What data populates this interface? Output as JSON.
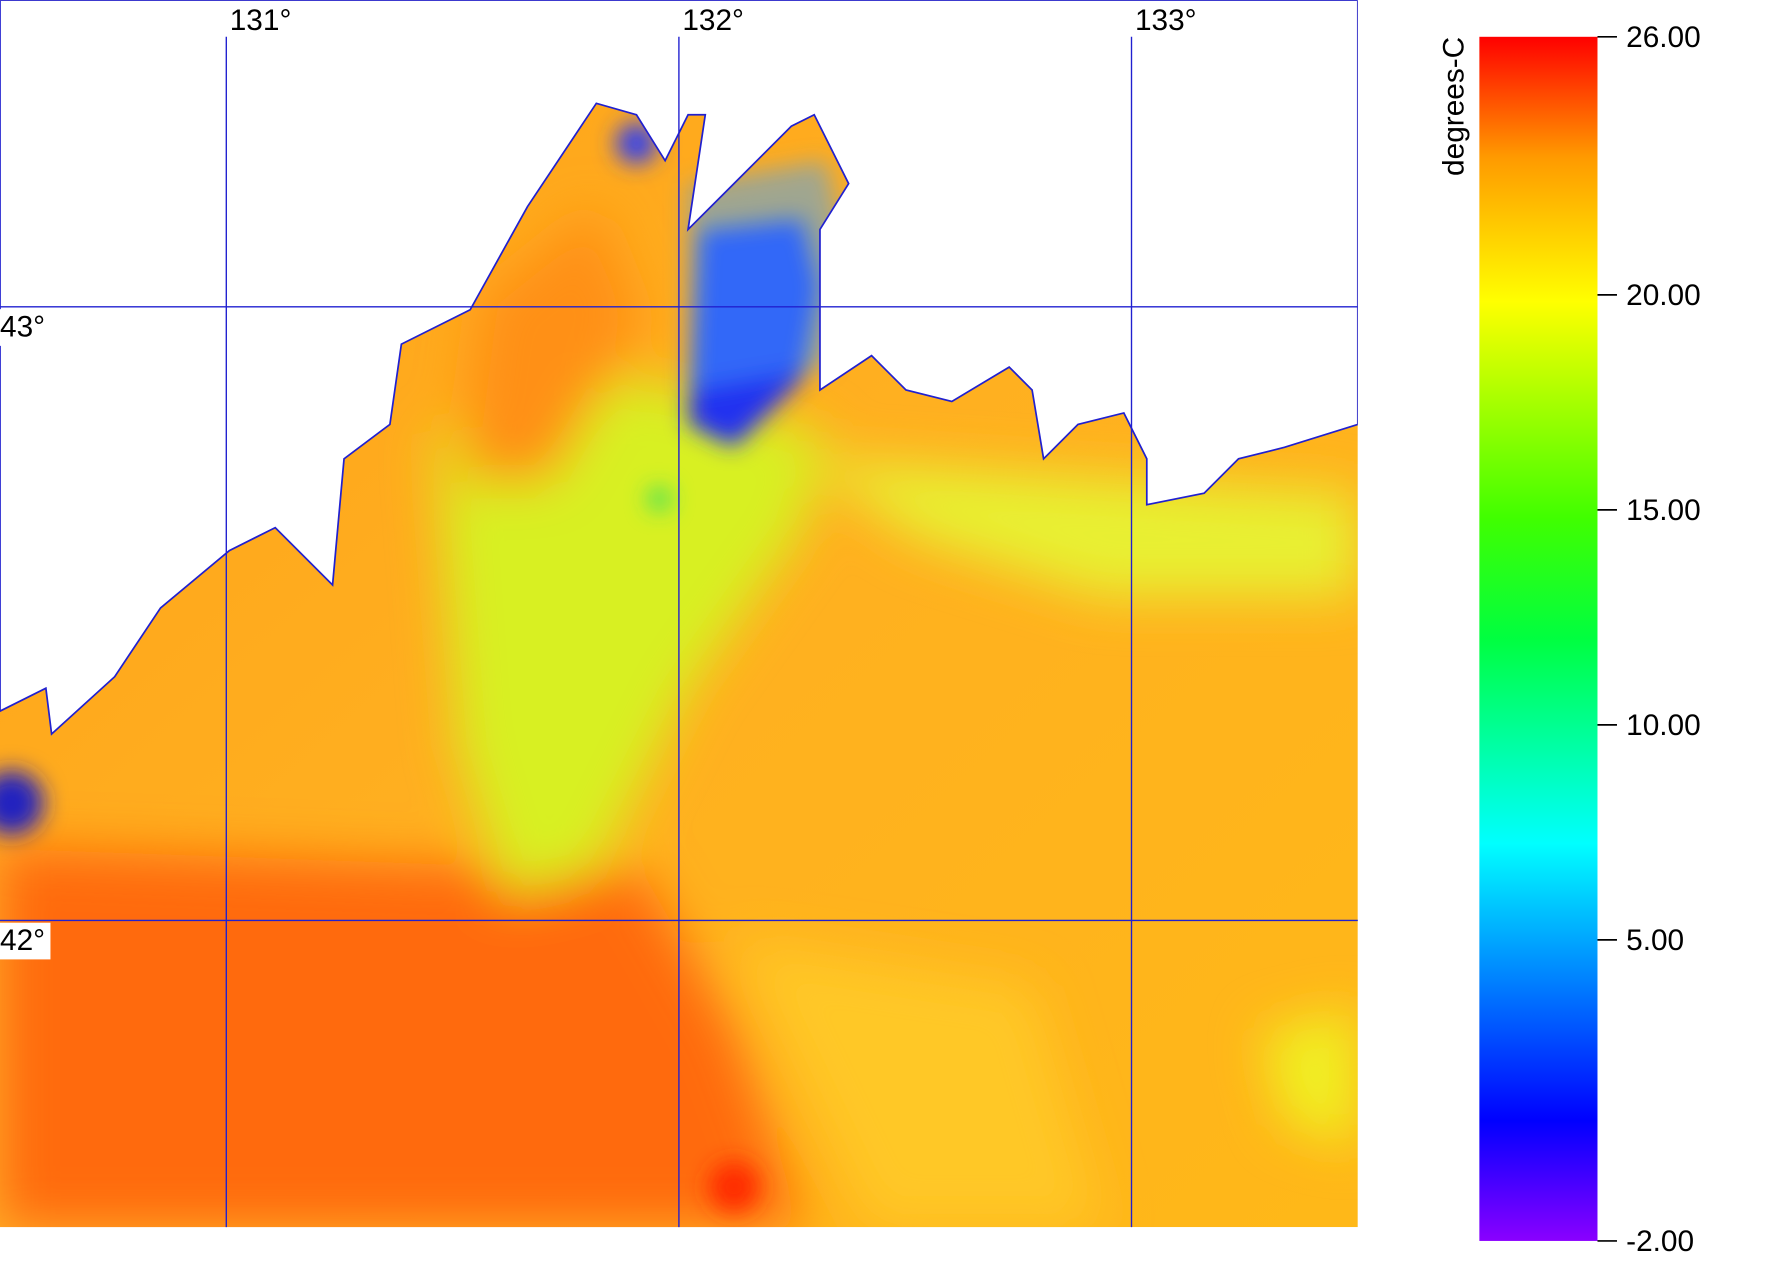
{
  "map": {
    "lonlim": [
      130.5,
      133.5
    ],
    "latlim": [
      41.5,
      43.5
    ],
    "lon_ticks": [
      {
        "value": 131,
        "label": "131°"
      },
      {
        "value": 132,
        "label": "132°"
      },
      {
        "value": 133,
        "label": "133°"
      }
    ],
    "lat_ticks": [
      {
        "value": 43,
        "label": "43°"
      },
      {
        "value": 42,
        "label": "42°"
      }
    ],
    "grid_color": "#2020d0"
  },
  "colorbar": {
    "label": "degrees-C",
    "range": [
      -2,
      26
    ],
    "ticks": [
      {
        "value": 26,
        "label": "26.00"
      },
      {
        "value": 20,
        "label": "20.00"
      },
      {
        "value": 15,
        "label": "15.00"
      },
      {
        "value": 10,
        "label": "10.00"
      },
      {
        "value": 5,
        "label": "5.00"
      },
      {
        "value": -2,
        "label": "-2.00"
      }
    ]
  }
}
